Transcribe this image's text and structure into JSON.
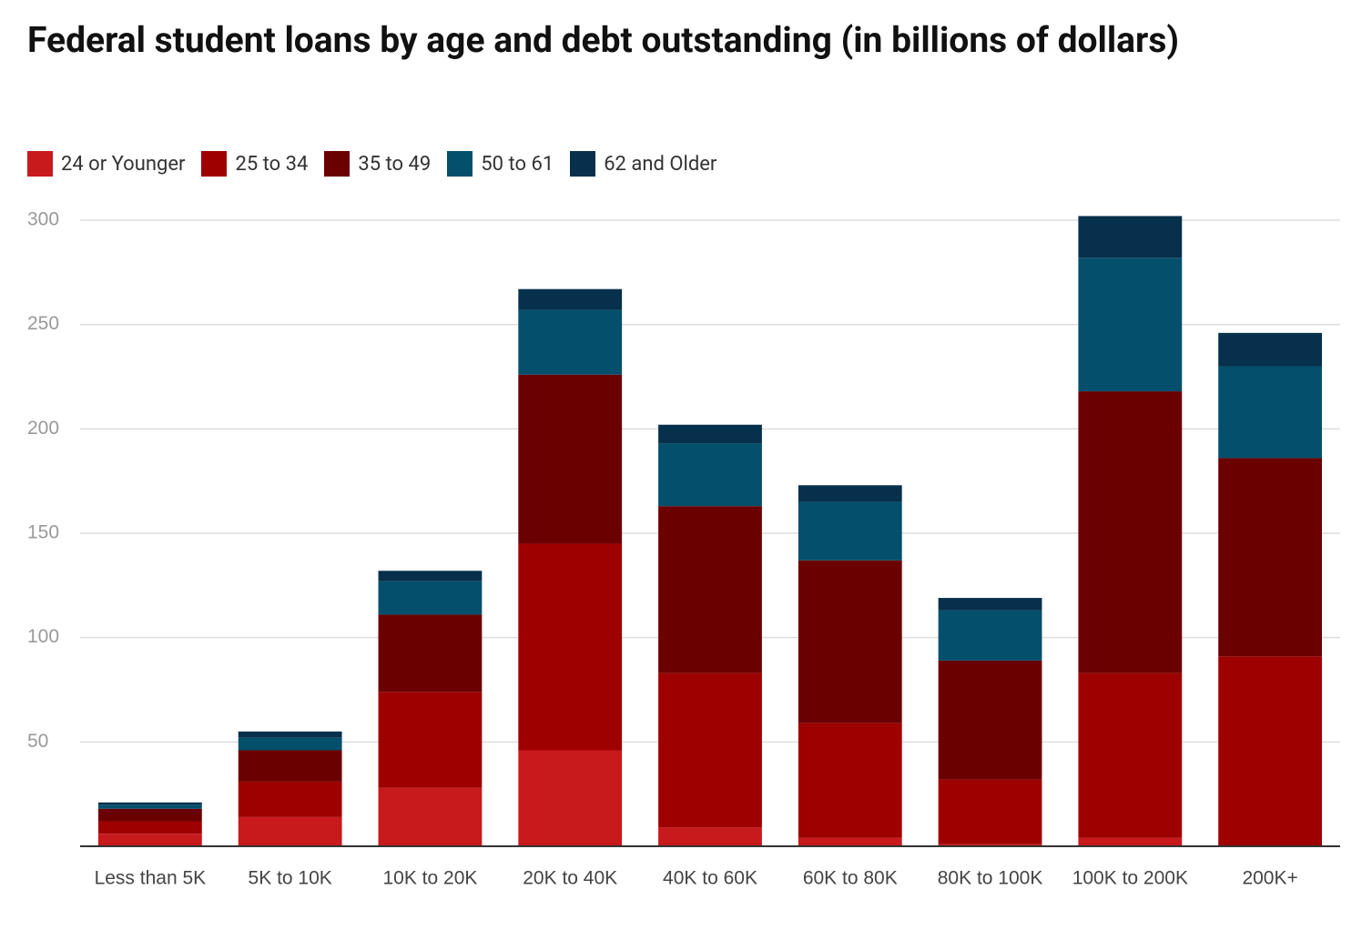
{
  "chart_data": {
    "type": "stacked_bar",
    "title": "Federal student loans by age and debt outstanding (in billions of dollars)",
    "categories": [
      "Less than 5K",
      "5K to 10K",
      "10K to 20K",
      "20K to 40K",
      "40K to 60K",
      "60K to 80K",
      "80K to 100K",
      "100K to 200K",
      "200K+"
    ],
    "series": [
      {
        "name": "24 or Younger",
        "color": "#c8191c",
        "values": [
          6,
          14,
          28,
          46,
          9,
          4,
          1,
          4,
          0
        ]
      },
      {
        "name": "25 to 34",
        "color": "#9e0000",
        "values": [
          6,
          17,
          46,
          99,
          74,
          55,
          31,
          79,
          91
        ]
      },
      {
        "name": "35 to 49",
        "color": "#6b0000",
        "values": [
          6,
          15,
          37,
          81,
          80,
          78,
          57,
          135,
          95
        ]
      },
      {
        "name": "50 to 61",
        "color": "#044f6b",
        "values": [
          2,
          6,
          16,
          31,
          30,
          28,
          24,
          64,
          44
        ]
      },
      {
        "name": "62 and Older",
        "color": "#06304b",
        "values": [
          1,
          3,
          5,
          10,
          9,
          8,
          6,
          20,
          16
        ]
      }
    ],
    "ylim": [
      0,
      300
    ],
    "yticks": [
      50,
      100,
      150,
      200,
      250,
      300
    ],
    "grid": true
  }
}
